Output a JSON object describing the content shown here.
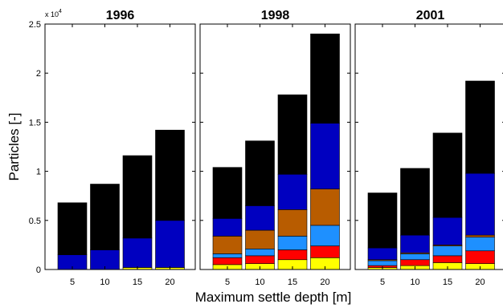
{
  "chart_data": {
    "type": "bar",
    "stacked": true,
    "xlabel": "Maximum settle depth [m]",
    "ylabel": "Particles [-]",
    "y_multiplier_label": "x 10",
    "y_multiplier_exponent": "4",
    "ylim": [
      0,
      25000
    ],
    "y_ticks": [
      0,
      5000,
      10000,
      15000,
      20000,
      25000
    ],
    "y_tick_labels": [
      "0",
      "0.5",
      "1",
      "1.5",
      "2",
      "2.5"
    ],
    "categories": [
      "5",
      "10",
      "15",
      "20"
    ],
    "series_colors": [
      "#ffff00",
      "#ff0000",
      "#1e90ff",
      "#b85c00",
      "#0000c0",
      "#000000"
    ],
    "panels": [
      {
        "title": "1996",
        "stacks": [
          [
            0,
            0,
            0,
            0,
            1500,
            5300
          ],
          [
            0,
            0,
            0,
            0,
            2000,
            6700
          ],
          [
            200,
            0,
            0,
            0,
            3000,
            8400
          ],
          [
            200,
            0,
            0,
            0,
            4800,
            9200
          ]
        ]
      },
      {
        "title": "1998",
        "stacks": [
          [
            500,
            700,
            400,
            1800,
            1800,
            5200
          ],
          [
            600,
            800,
            700,
            1900,
            2500,
            6600
          ],
          [
            1000,
            1000,
            1400,
            2700,
            3600,
            8100
          ],
          [
            1200,
            1200,
            2100,
            3700,
            6700,
            9100
          ]
        ]
      },
      {
        "title": "2001",
        "stacks": [
          [
            200,
            200,
            500,
            100,
            1200,
            5600
          ],
          [
            400,
            600,
            600,
            100,
            1800,
            6800
          ],
          [
            700,
            700,
            1000,
            100,
            2800,
            8600
          ],
          [
            600,
            1300,
            1400,
            200,
            6300,
            9400
          ]
        ]
      }
    ]
  }
}
